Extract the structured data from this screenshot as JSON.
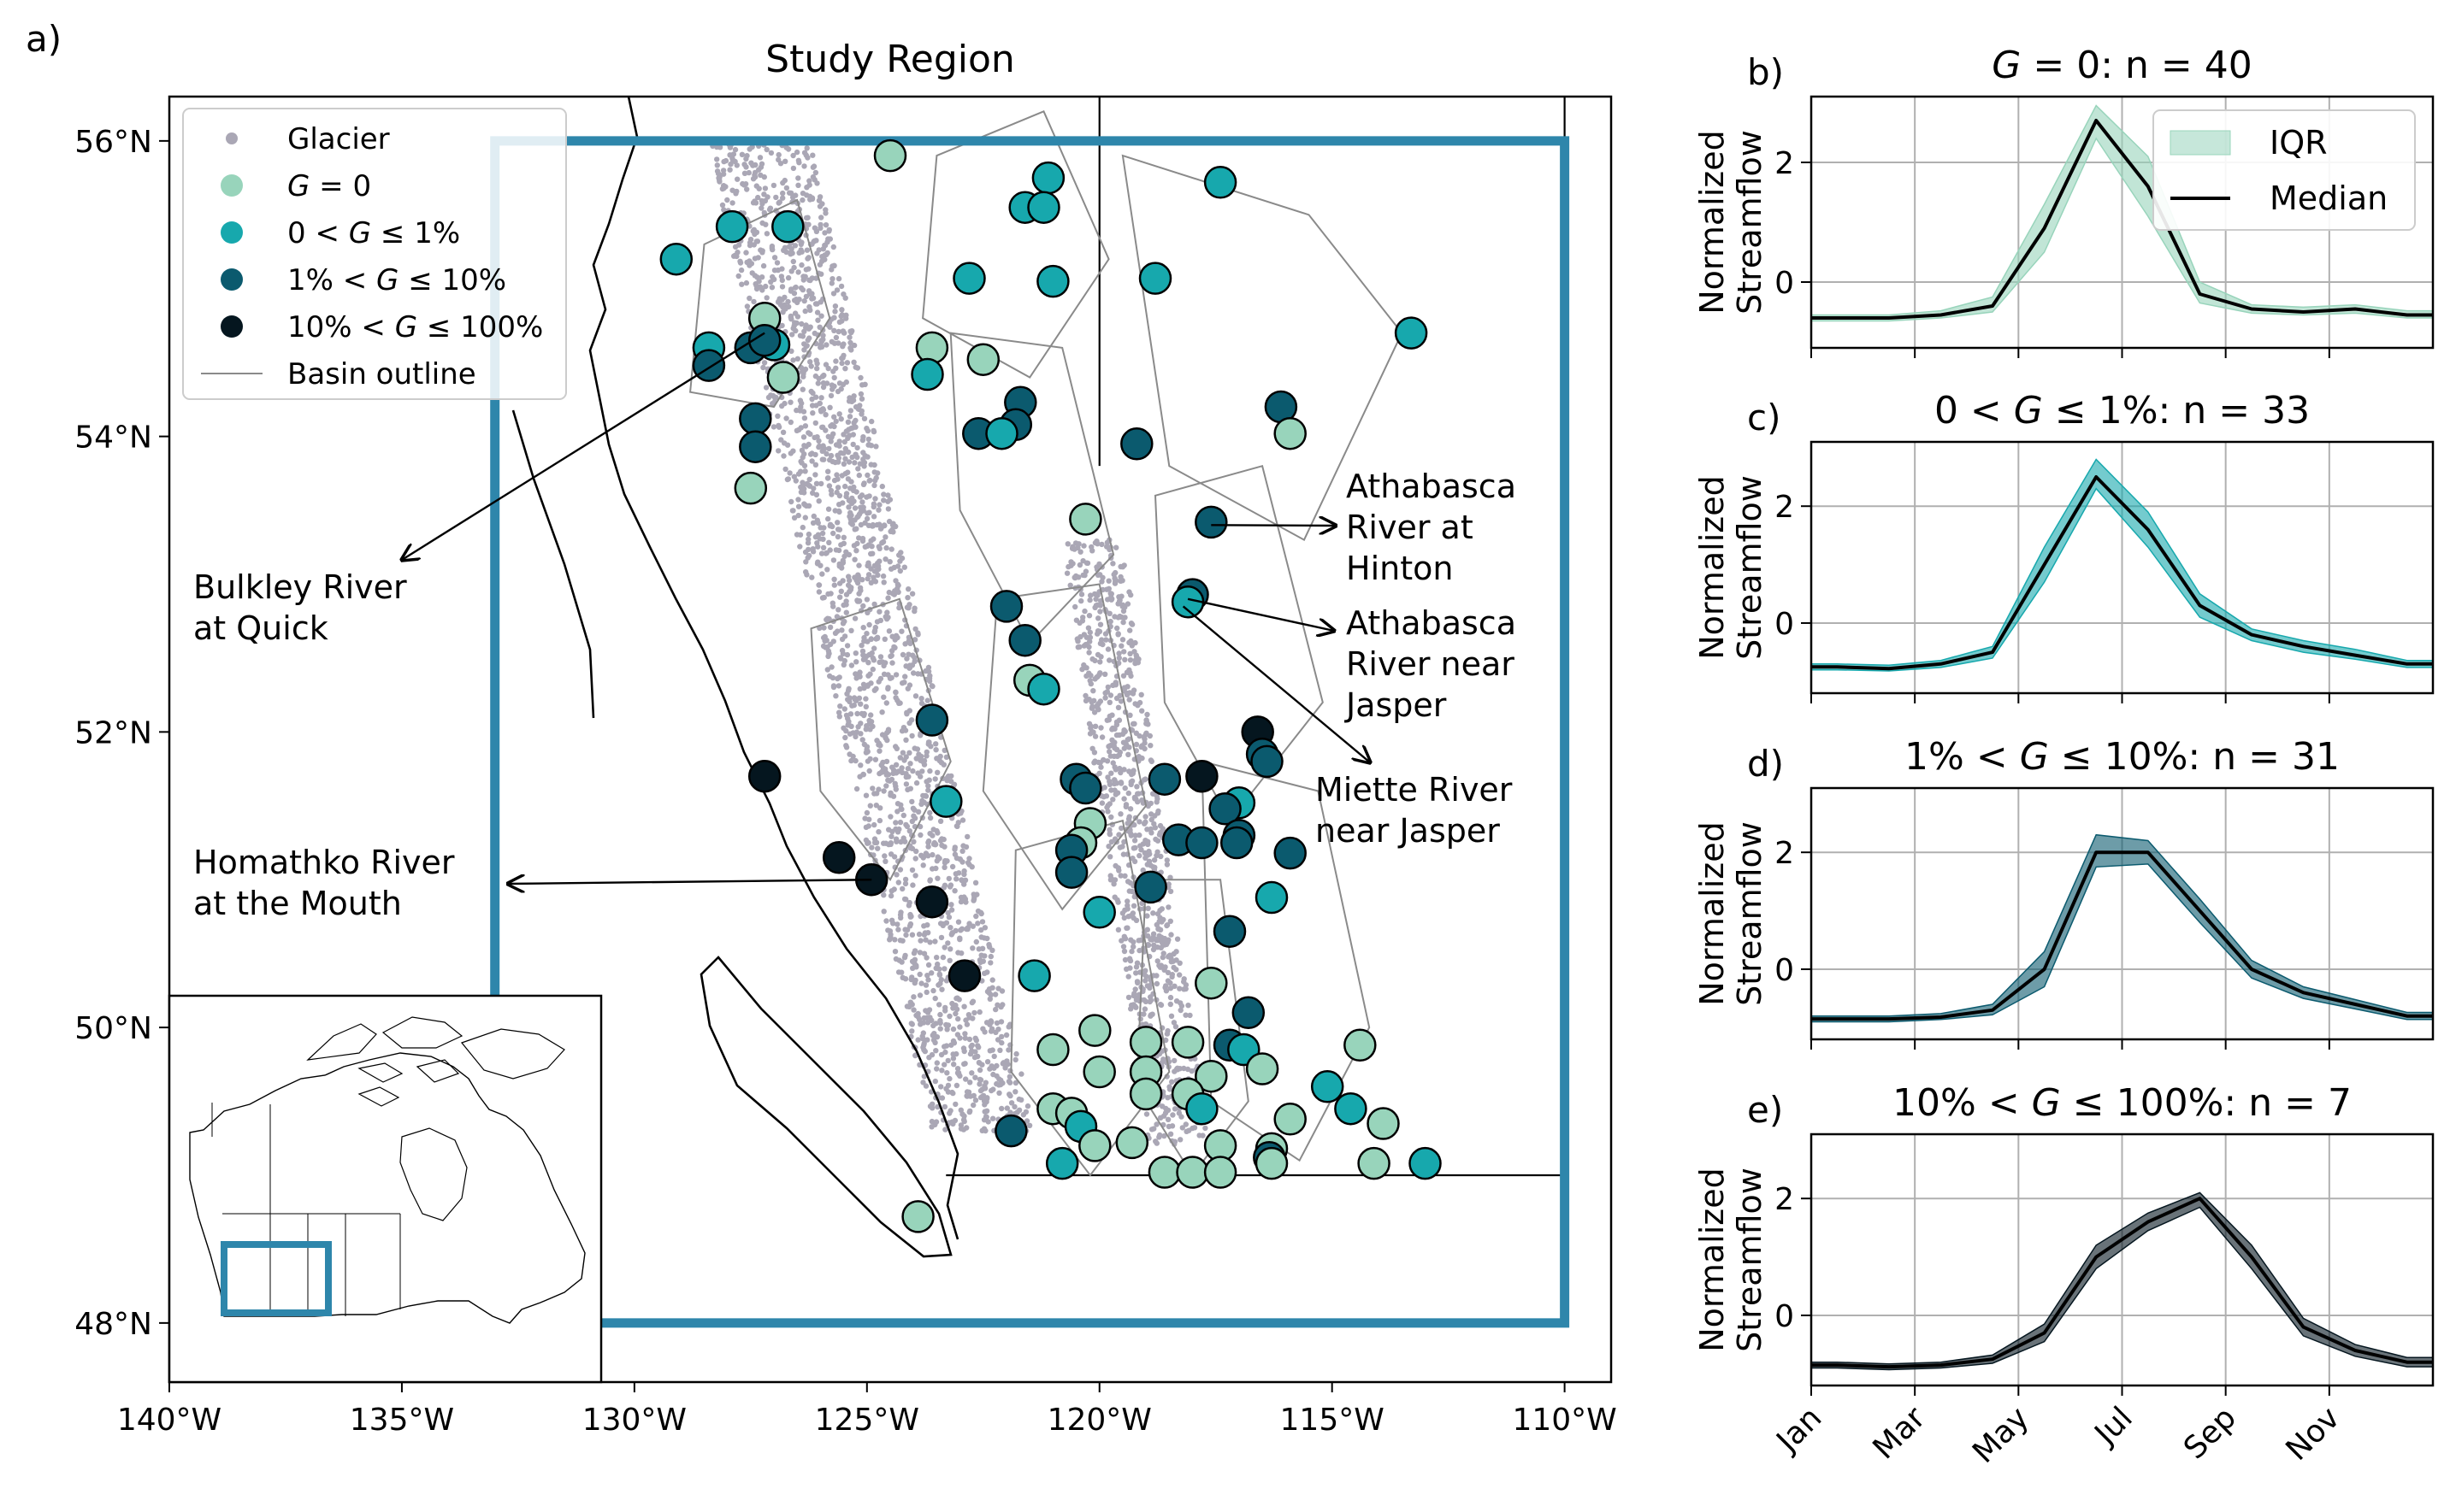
{
  "colors": {
    "g0": "#98d4bb",
    "g1": "#17a8ad",
    "g10": "#0b5a6e",
    "g100": "#05161f",
    "glacier": "#aaa7b5",
    "study_box": "#2e86ab",
    "basin": "#8a8a8a"
  },
  "chart_data": [
    {
      "id": "a",
      "type": "scatter",
      "panel_label": "a)",
      "title": "Study Region",
      "xlim": [
        -140,
        -109
      ],
      "ylim": [
        47.6,
        56.3
      ],
      "x_ticks": [
        -140,
        -135,
        -130,
        -125,
        -120,
        -115,
        -110
      ],
      "x_tick_labels": [
        "140$^\\circ$W",
        "135$^\\circ$W",
        "130$^\\circ$W",
        "125$^\\circ$W",
        "120$^\\circ$W",
        "115$^\\circ$W",
        "110$^\\circ$W"
      ],
      "y_ticks": [
        48,
        50,
        52,
        54,
        56
      ],
      "y_tick_labels": [
        "48$^\\circ$N",
        "50$^\\circ$N",
        "52$^\\circ$N",
        "54$^\\circ$N",
        "56$^\\circ$N"
      ],
      "legend": {
        "position": "top-left",
        "entries": [
          {
            "label": "Glacier",
            "marker": "glacier-dot"
          },
          {
            "label": "G = 0",
            "marker": "g0"
          },
          {
            "label": "0 < G ≤ 1%",
            "marker": "g1"
          },
          {
            "label": "1% < G ≤ 10%",
            "marker": "g10"
          },
          {
            "label": "10% < G ≤ 100%",
            "marker": "g100"
          },
          {
            "label": "Basin outline",
            "marker": "basin-line"
          }
        ]
      },
      "study_box": {
        "lon": [
          -133,
          -110
        ],
        "lat": [
          48,
          56
        ]
      },
      "annotations": [
        {
          "text": [
            "Bulkley River",
            "at Quick"
          ],
          "point": [
            -127.2,
            54.7
          ]
        },
        {
          "text": [
            "Athabasca",
            "River at",
            "Hinton"
          ],
          "point": [
            -117.6,
            53.4
          ]
        },
        {
          "text": [
            "Athabasca",
            "River near",
            "Jasper"
          ],
          "point": [
            -118.1,
            52.9
          ]
        },
        {
          "text": [
            "Miette River",
            "near Jasper"
          ],
          "point": [
            -118.2,
            52.85
          ]
        },
        {
          "text": [
            "Homathko River",
            "at the Mouth"
          ],
          "point": [
            -124.9,
            51.0
          ]
        }
      ],
      "stations": [
        {
          "lon": -124.5,
          "lat": 55.9,
          "g": "g0"
        },
        {
          "lon": -121.1,
          "lat": 55.75,
          "g": "g1"
        },
        {
          "lon": -117.4,
          "lat": 55.72,
          "g": "g1"
        },
        {
          "lon": -121.6,
          "lat": 55.55,
          "g": "g1"
        },
        {
          "lon": -121.2,
          "lat": 55.55,
          "g": "g1"
        },
        {
          "lon": -127.9,
          "lat": 55.42,
          "g": "g1"
        },
        {
          "lon": -126.7,
          "lat": 55.42,
          "g": "g1"
        },
        {
          "lon": -129.1,
          "lat": 55.2,
          "g": "g1"
        },
        {
          "lon": -122.8,
          "lat": 55.07,
          "g": "g1"
        },
        {
          "lon": -121.0,
          "lat": 55.05,
          "g": "g1"
        },
        {
          "lon": -118.8,
          "lat": 55.07,
          "g": "g1"
        },
        {
          "lon": -113.3,
          "lat": 54.7,
          "g": "g1"
        },
        {
          "lon": -127.2,
          "lat": 54.8,
          "g": "g0"
        },
        {
          "lon": -128.4,
          "lat": 54.6,
          "g": "g1"
        },
        {
          "lon": -127.0,
          "lat": 54.62,
          "g": "g1"
        },
        {
          "lon": -127.5,
          "lat": 54.6,
          "g": "g10"
        },
        {
          "lon": -128.4,
          "lat": 54.48,
          "g": "g10"
        },
        {
          "lon": -127.2,
          "lat": 54.65,
          "g": "g10"
        },
        {
          "lon": -123.6,
          "lat": 54.6,
          "g": "g0"
        },
        {
          "lon": -122.5,
          "lat": 54.52,
          "g": "g0"
        },
        {
          "lon": -126.8,
          "lat": 54.4,
          "g": "g0"
        },
        {
          "lon": -123.7,
          "lat": 54.42,
          "g": "g1"
        },
        {
          "lon": -121.7,
          "lat": 54.23,
          "g": "g10"
        },
        {
          "lon": -116.1,
          "lat": 54.2,
          "g": "g10"
        },
        {
          "lon": -127.4,
          "lat": 54.12,
          "g": "g10"
        },
        {
          "lon": -127.4,
          "lat": 53.93,
          "g": "g10"
        },
        {
          "lon": -121.8,
          "lat": 54.08,
          "g": "g10"
        },
        {
          "lon": -122.6,
          "lat": 54.02,
          "g": "g10"
        },
        {
          "lon": -122.1,
          "lat": 54.02,
          "g": "g1"
        },
        {
          "lon": -119.2,
          "lat": 53.95,
          "g": "g10"
        },
        {
          "lon": -115.9,
          "lat": 54.02,
          "g": "g0"
        },
        {
          "lon": -127.5,
          "lat": 53.65,
          "g": "g0"
        },
        {
          "lon": -120.3,
          "lat": 53.44,
          "g": "g0"
        },
        {
          "lon": -117.6,
          "lat": 53.42,
          "g": "g10"
        },
        {
          "lon": -118.0,
          "lat": 52.93,
          "g": "g10"
        },
        {
          "lon": -118.1,
          "lat": 52.88,
          "g": "g1"
        },
        {
          "lon": -122.0,
          "lat": 52.85,
          "g": "g10"
        },
        {
          "lon": -121.6,
          "lat": 52.62,
          "g": "g10"
        },
        {
          "lon": -121.5,
          "lat": 52.35,
          "g": "g0"
        },
        {
          "lon": -121.2,
          "lat": 52.29,
          "g": "g1"
        },
        {
          "lon": -123.6,
          "lat": 52.08,
          "g": "g10"
        },
        {
          "lon": -116.6,
          "lat": 52.0,
          "g": "g100"
        },
        {
          "lon": -116.5,
          "lat": 51.85,
          "g": "g10"
        },
        {
          "lon": -116.4,
          "lat": 51.8,
          "g": "g10"
        },
        {
          "lon": -127.2,
          "lat": 51.7,
          "g": "g100"
        },
        {
          "lon": -117.8,
          "lat": 51.7,
          "g": "g100"
        },
        {
          "lon": -118.6,
          "lat": 51.68,
          "g": "g10"
        },
        {
          "lon": -120.5,
          "lat": 51.68,
          "g": "g10"
        },
        {
          "lon": -120.3,
          "lat": 51.62,
          "g": "g10"
        },
        {
          "lon": -123.3,
          "lat": 51.53,
          "g": "g1"
        },
        {
          "lon": -117.0,
          "lat": 51.52,
          "g": "g1"
        },
        {
          "lon": -117.3,
          "lat": 51.48,
          "g": "g10"
        },
        {
          "lon": -120.2,
          "lat": 51.38,
          "g": "g0"
        },
        {
          "lon": -120.4,
          "lat": 51.25,
          "g": "g0"
        },
        {
          "lon": -117.0,
          "lat": 51.3,
          "g": "g10"
        },
        {
          "lon": -117.05,
          "lat": 51.25,
          "g": "g10"
        },
        {
          "lon": -118.3,
          "lat": 51.27,
          "g": "g10"
        },
        {
          "lon": -120.6,
          "lat": 51.2,
          "g": "g10"
        },
        {
          "lon": -117.8,
          "lat": 51.25,
          "g": "g10"
        },
        {
          "lon": -115.9,
          "lat": 51.18,
          "g": "g10"
        },
        {
          "lon": -125.6,
          "lat": 51.15,
          "g": "g100"
        },
        {
          "lon": -120.6,
          "lat": 51.05,
          "g": "g10"
        },
        {
          "lon": -124.9,
          "lat": 51.0,
          "g": "g100"
        },
        {
          "lon": -118.9,
          "lat": 50.95,
          "g": "g10"
        },
        {
          "lon": -116.3,
          "lat": 50.88,
          "g": "g1"
        },
        {
          "lon": -123.6,
          "lat": 50.85,
          "g": "g100"
        },
        {
          "lon": -120.0,
          "lat": 50.78,
          "g": "g1"
        },
        {
          "lon": -117.2,
          "lat": 50.65,
          "g": "g10"
        },
        {
          "lon": -122.9,
          "lat": 50.35,
          "g": "g100"
        },
        {
          "lon": -121.4,
          "lat": 50.35,
          "g": "g1"
        },
        {
          "lon": -117.6,
          "lat": 50.3,
          "g": "g0"
        },
        {
          "lon": -116.8,
          "lat": 50.1,
          "g": "g10"
        },
        {
          "lon": -120.1,
          "lat": 49.98,
          "g": "g0"
        },
        {
          "lon": -119.0,
          "lat": 49.9,
          "g": "g0"
        },
        {
          "lon": -118.1,
          "lat": 49.9,
          "g": "g0"
        },
        {
          "lon": -117.2,
          "lat": 49.88,
          "g": "g10"
        },
        {
          "lon": -121.0,
          "lat": 49.85,
          "g": "g0"
        },
        {
          "lon": -116.9,
          "lat": 49.85,
          "g": "g1"
        },
        {
          "lon": -114.4,
          "lat": 49.88,
          "g": "g0"
        },
        {
          "lon": -120.0,
          "lat": 49.7,
          "g": "g0"
        },
        {
          "lon": -119.0,
          "lat": 49.7,
          "g": "g0"
        },
        {
          "lon": -117.6,
          "lat": 49.67,
          "g": "g0"
        },
        {
          "lon": -116.5,
          "lat": 49.72,
          "g": "g0"
        },
        {
          "lon": -115.1,
          "lat": 49.6,
          "g": "g1"
        },
        {
          "lon": -119.0,
          "lat": 49.55,
          "g": "g0"
        },
        {
          "lon": -118.1,
          "lat": 49.55,
          "g": "g0"
        },
        {
          "lon": -121.0,
          "lat": 49.45,
          "g": "g0"
        },
        {
          "lon": -120.6,
          "lat": 49.42,
          "g": "g0"
        },
        {
          "lon": -117.8,
          "lat": 49.45,
          "g": "g1"
        },
        {
          "lon": -115.9,
          "lat": 49.38,
          "g": "g0"
        },
        {
          "lon": -114.6,
          "lat": 49.45,
          "g": "g1"
        },
        {
          "lon": -113.9,
          "lat": 49.35,
          "g": "g0"
        },
        {
          "lon": -120.4,
          "lat": 49.33,
          "g": "g1"
        },
        {
          "lon": -121.9,
          "lat": 49.3,
          "g": "g10"
        },
        {
          "lon": -119.3,
          "lat": 49.22,
          "g": "g0"
        },
        {
          "lon": -117.4,
          "lat": 49.2,
          "g": "g0"
        },
        {
          "lon": -120.1,
          "lat": 49.2,
          "g": "g0"
        },
        {
          "lon": -116.3,
          "lat": 49.18,
          "g": "g0"
        },
        {
          "lon": -116.35,
          "lat": 49.12,
          "g": "g10"
        },
        {
          "lon": -120.8,
          "lat": 49.08,
          "g": "g1"
        },
        {
          "lon": -116.3,
          "lat": 49.08,
          "g": "g0"
        },
        {
          "lon": -114.1,
          "lat": 49.08,
          "g": "g0"
        },
        {
          "lon": -113.0,
          "lat": 49.08,
          "g": "g1"
        },
        {
          "lon": -118.6,
          "lat": 49.02,
          "g": "g0"
        },
        {
          "lon": -118.0,
          "lat": 49.02,
          "g": "g0"
        },
        {
          "lon": -117.4,
          "lat": 49.02,
          "g": "g0"
        },
        {
          "lon": -123.9,
          "lat": 48.72,
          "g": "g0"
        }
      ]
    },
    {
      "id": "b",
      "type": "area",
      "panel_label": "b)",
      "title": "G = 0: n = 40",
      "color_key": "g0",
      "ylabel": "Normalized\nStreamflow",
      "ylim": [
        -1.1,
        3.1
      ],
      "y_ticks": [
        0,
        2
      ],
      "legend": {
        "position": "top-right",
        "entries": [
          "IQR",
          "Median"
        ]
      },
      "x": [
        "Jan",
        "Feb",
        "Mar",
        "Apr",
        "May",
        "Jun",
        "Jul",
        "Aug",
        "Sep",
        "Oct",
        "Nov",
        "Dec"
      ],
      "median": [
        -0.6,
        -0.6,
        -0.55,
        -0.4,
        0.9,
        2.7,
        1.6,
        -0.2,
        -0.45,
        -0.5,
        -0.45,
        -0.55
      ],
      "iqr_low": [
        -0.65,
        -0.65,
        -0.6,
        -0.5,
        0.5,
        2.4,
        1.1,
        -0.35,
        -0.52,
        -0.55,
        -0.52,
        -0.6
      ],
      "iqr_high": [
        -0.55,
        -0.55,
        -0.48,
        -0.25,
        1.3,
        2.95,
        2.1,
        0.0,
        -0.38,
        -0.42,
        -0.38,
        -0.48
      ]
    },
    {
      "id": "c",
      "type": "area",
      "panel_label": "c)",
      "title": "0 < G ≤ 1%: n = 33",
      "color_key": "g1",
      "ylabel": "Normalized\nStreamflow",
      "ylim": [
        -1.2,
        3.1
      ],
      "y_ticks": [
        0,
        2
      ],
      "x": [
        "Jan",
        "Feb",
        "Mar",
        "Apr",
        "May",
        "Jun",
        "Jul",
        "Aug",
        "Sep",
        "Oct",
        "Nov",
        "Dec"
      ],
      "median": [
        -0.75,
        -0.78,
        -0.7,
        -0.5,
        1.0,
        2.5,
        1.6,
        0.3,
        -0.2,
        -0.4,
        -0.55,
        -0.7
      ],
      "iqr_low": [
        -0.8,
        -0.82,
        -0.76,
        -0.6,
        0.7,
        2.3,
        1.3,
        0.1,
        -0.3,
        -0.5,
        -0.62,
        -0.76
      ],
      "iqr_high": [
        -0.7,
        -0.72,
        -0.64,
        -0.4,
        1.3,
        2.8,
        1.9,
        0.5,
        -0.1,
        -0.3,
        -0.45,
        -0.64
      ]
    },
    {
      "id": "d",
      "type": "area",
      "panel_label": "d)",
      "title": "1% < G ≤ 10%: n = 31",
      "color_key": "g10",
      "ylabel": "Normalized\nStreamflow",
      "ylim": [
        -1.2,
        3.1
      ],
      "y_ticks": [
        0,
        2
      ],
      "x": [
        "Jan",
        "Feb",
        "Mar",
        "Apr",
        "May",
        "Jun",
        "Jul",
        "Aug",
        "Sep",
        "Oct",
        "Nov",
        "Dec"
      ],
      "median": [
        -0.85,
        -0.85,
        -0.82,
        -0.7,
        0.0,
        2.0,
        2.0,
        1.0,
        0.0,
        -0.4,
        -0.6,
        -0.8
      ],
      "iqr_low": [
        -0.9,
        -0.9,
        -0.86,
        -0.78,
        -0.3,
        1.75,
        1.8,
        0.8,
        -0.15,
        -0.5,
        -0.68,
        -0.86
      ],
      "iqr_high": [
        -0.8,
        -0.8,
        -0.76,
        -0.6,
        0.3,
        2.3,
        2.2,
        1.2,
        0.15,
        -0.3,
        -0.52,
        -0.74
      ]
    },
    {
      "id": "e",
      "type": "area",
      "panel_label": "e)",
      "title": "10% < G ≤ 100%: n = 7",
      "color_key": "g100",
      "ylabel": "Normalized\nStreamflow",
      "xlabel_ticks": [
        "Jan",
        "Mar",
        "May",
        "Jul",
        "Sep",
        "Nov"
      ],
      "ylim": [
        -1.2,
        3.1
      ],
      "y_ticks": [
        0,
        2
      ],
      "x": [
        "Jan",
        "Feb",
        "Mar",
        "Apr",
        "May",
        "Jun",
        "Jul",
        "Aug",
        "Sep",
        "Oct",
        "Nov",
        "Dec"
      ],
      "median": [
        -0.85,
        -0.88,
        -0.85,
        -0.75,
        -0.3,
        1.0,
        1.6,
        2.0,
        1.0,
        -0.2,
        -0.6,
        -0.8
      ],
      "iqr_low": [
        -0.9,
        -0.93,
        -0.9,
        -0.82,
        -0.45,
        0.8,
        1.45,
        1.85,
        0.8,
        -0.35,
        -0.7,
        -0.88
      ],
      "iqr_high": [
        -0.8,
        -0.83,
        -0.8,
        -0.68,
        -0.15,
        1.2,
        1.75,
        2.1,
        1.2,
        -0.05,
        -0.5,
        -0.72
      ]
    }
  ],
  "panel_b_legend_labels": {
    "iqr": "IQR",
    "median": "Median"
  }
}
